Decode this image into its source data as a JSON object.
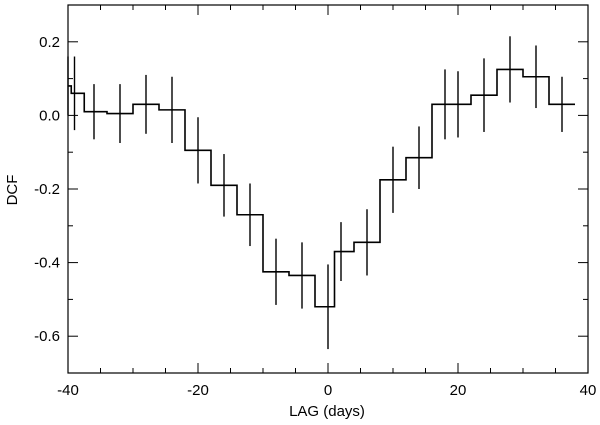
{
  "chart_data": {
    "type": "line",
    "style": "step-with-error-bars",
    "xlabel": "LAG (days)",
    "ylabel": "DCF",
    "xlim": [
      -40,
      40
    ],
    "ylim": [
      -0.7,
      0.3
    ],
    "x_ticks": [
      -40,
      -20,
      0,
      20,
      40
    ],
    "x_tick_labels": [
      "-40",
      "-20",
      "0",
      "20",
      "40"
    ],
    "y_ticks": [
      -0.6,
      -0.4,
      -0.2,
      0.0,
      0.2
    ],
    "y_tick_labels": [
      "-0.6",
      "-0.4",
      "-0.2",
      "0.0",
      "0.2"
    ],
    "grid": false,
    "series": [
      {
        "x": [
          -40,
          -39,
          -36,
          -32,
          -28,
          -24,
          -20,
          -16,
          -12,
          -8,
          -4,
          0,
          2,
          6,
          10,
          14,
          18,
          20,
          24,
          28,
          32,
          36
        ],
        "y": [
          0.08,
          0.06,
          0.01,
          0.005,
          0.03,
          0.015,
          -0.095,
          -0.19,
          -0.27,
          -0.425,
          -0.435,
          -0.52,
          -0.37,
          -0.345,
          -0.175,
          -0.115,
          0.03,
          0.03,
          0.055,
          0.125,
          0.105,
          0.03
        ],
        "y_err": [
          0.08,
          0.1,
          0.075,
          0.08,
          0.08,
          0.09,
          0.09,
          0.085,
          0.085,
          0.09,
          0.09,
          0.115,
          0.08,
          0.09,
          0.09,
          0.085,
          0.095,
          0.09,
          0.1,
          0.09,
          0.085,
          0.075
        ]
      }
    ]
  }
}
